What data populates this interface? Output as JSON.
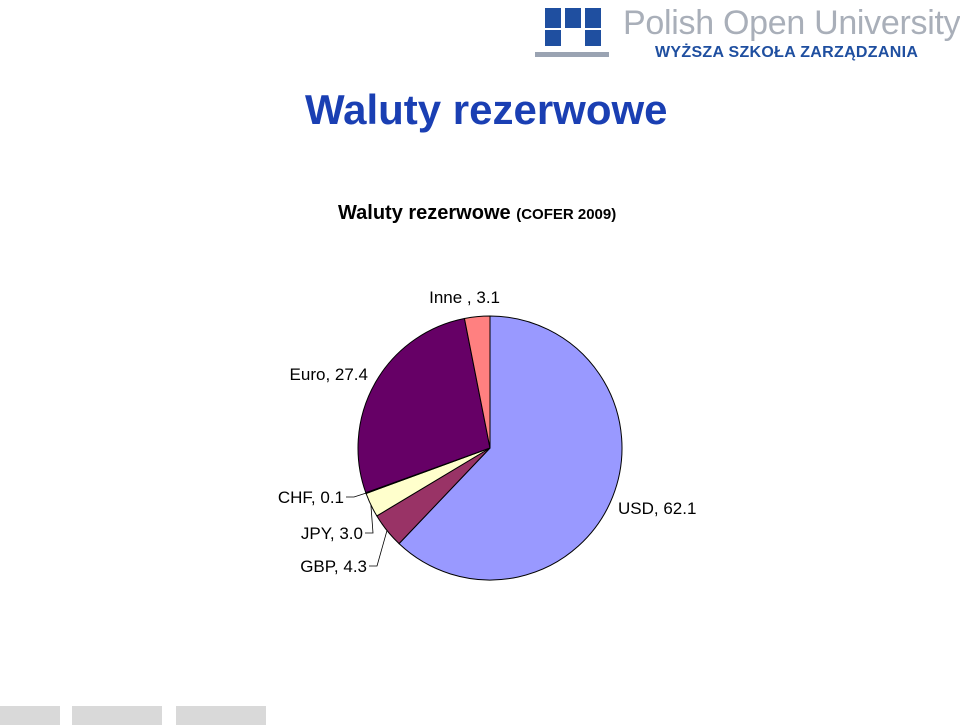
{
  "logo": {
    "title": "Polish Open University",
    "subtitle": "WYŻSZA SZKOŁA ZARZĄDZANIA"
  },
  "page_title": "Waluty rezerwowe",
  "chart_data": {
    "type": "pie",
    "title": "Waluty rezerwowe",
    "subtitle": "(COFER 2009)",
    "slices": [
      {
        "label": "USD",
        "value": 62.1,
        "display": "USD, 62.1",
        "color": "#9999ff"
      },
      {
        "label": "GBP",
        "value": 4.3,
        "display": "GBP, 4.3",
        "color": "#993366"
      },
      {
        "label": "JPY",
        "value": 3.0,
        "display": "JPY, 3.0",
        "color": "#ffffcc"
      },
      {
        "label": "CHF",
        "value": 0.1,
        "display": "CHF, 0.1",
        "color": "#ccffff"
      },
      {
        "label": "Euro",
        "value": 27.4,
        "display": "Euro, 27.4",
        "color": "#660066"
      },
      {
        "label": "Inne ",
        "value": 3.1,
        "display": "Inne , 3.1",
        "color": "#ff8080"
      }
    ],
    "start_angle": "top",
    "direction": "clockwise"
  }
}
